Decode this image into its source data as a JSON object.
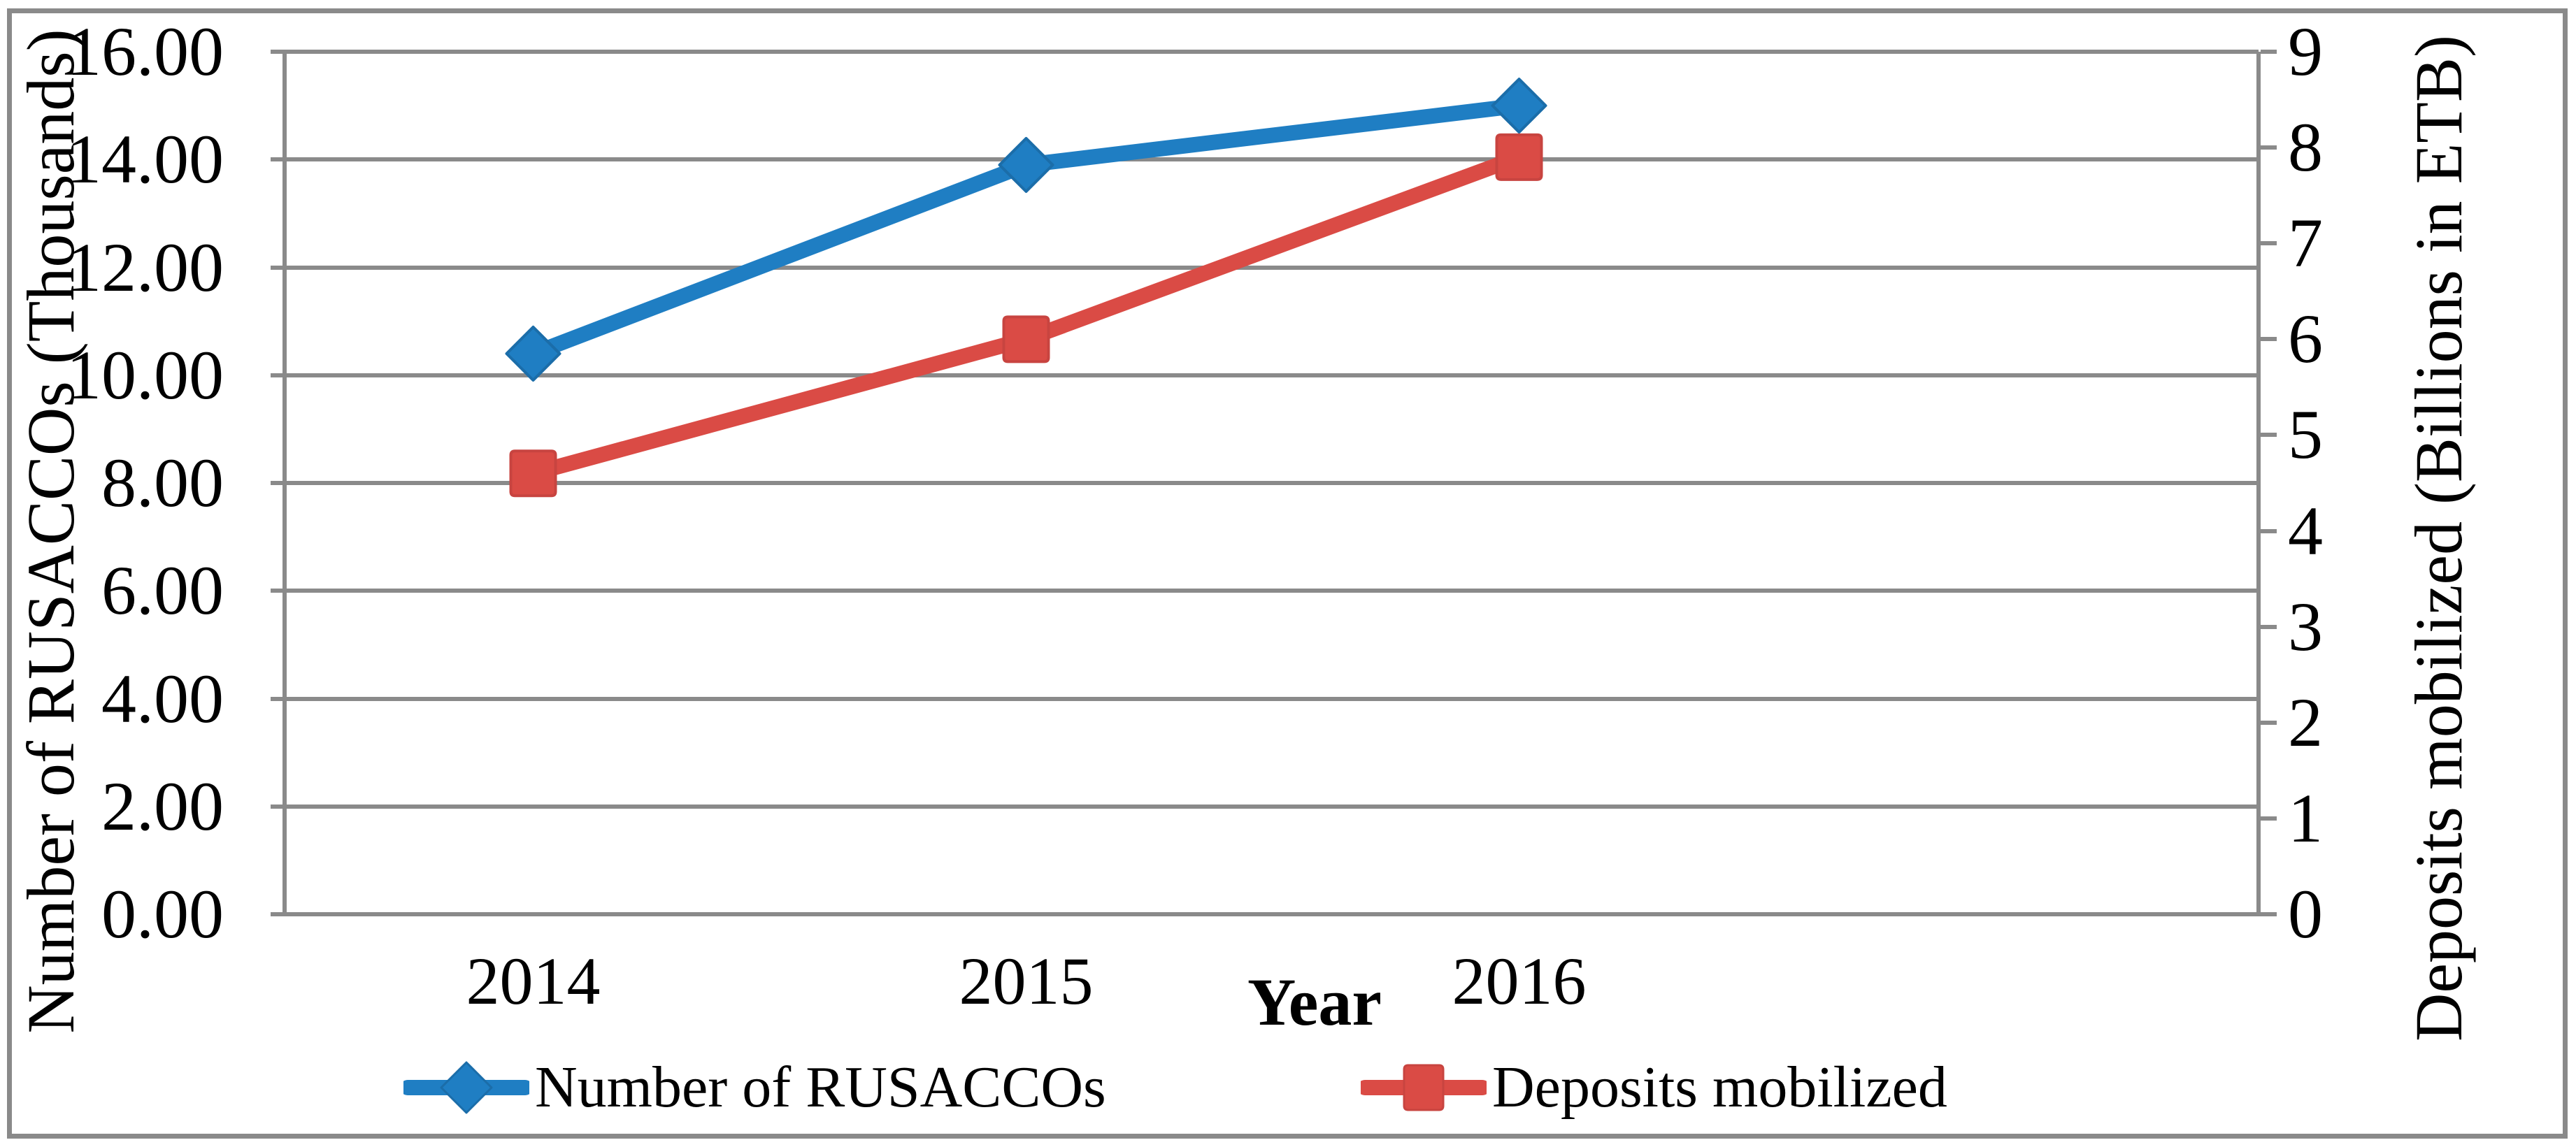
{
  "chart_data": {
    "type": "line",
    "categories": [
      "2014",
      "2015",
      "2016"
    ],
    "series": [
      {
        "name": "Number of RUSACCOs",
        "axis": "left",
        "values": [
          10.4,
          13.9,
          15.0
        ],
        "color": "#1F7EC3",
        "edge": "#1B6DA9",
        "marker": "diamond"
      },
      {
        "name": "Deposits mobilized",
        "axis": "right",
        "values": [
          4.6,
          6.0,
          7.9
        ],
        "color": "#DA4B45",
        "edge": "#C84440",
        "marker": "square"
      }
    ],
    "left_axis": {
      "label": "Number of RUSACCOs (Thousands)",
      "min": 0,
      "max": 16,
      "step": 2,
      "tick_labels": [
        "0.00",
        "2.00",
        "4.00",
        "6.00",
        "8.00",
        "10.00",
        "12.00",
        "14.00",
        "16.00"
      ]
    },
    "right_axis": {
      "label": "Deposits mobilized (Billions in ETB)",
      "min": 0,
      "max": 9,
      "step": 1,
      "tick_labels": [
        "0",
        "1",
        "2",
        "3",
        "4",
        "5",
        "6",
        "7",
        "8",
        "9"
      ]
    },
    "x_axis": {
      "label": "Year",
      "tick_labels": [
        "2014",
        "2015",
        "2016"
      ]
    },
    "legend": {
      "position": "bottom",
      "entries": [
        "Number of RUSACCOs",
        "Deposits mobilized"
      ]
    },
    "grid": true,
    "colors": {
      "grid": "#8A8A8A",
      "axis": "#8A8A8A",
      "border": "#8A8A8A",
      "text": "#000000",
      "background": "#FFFFFF"
    }
  }
}
